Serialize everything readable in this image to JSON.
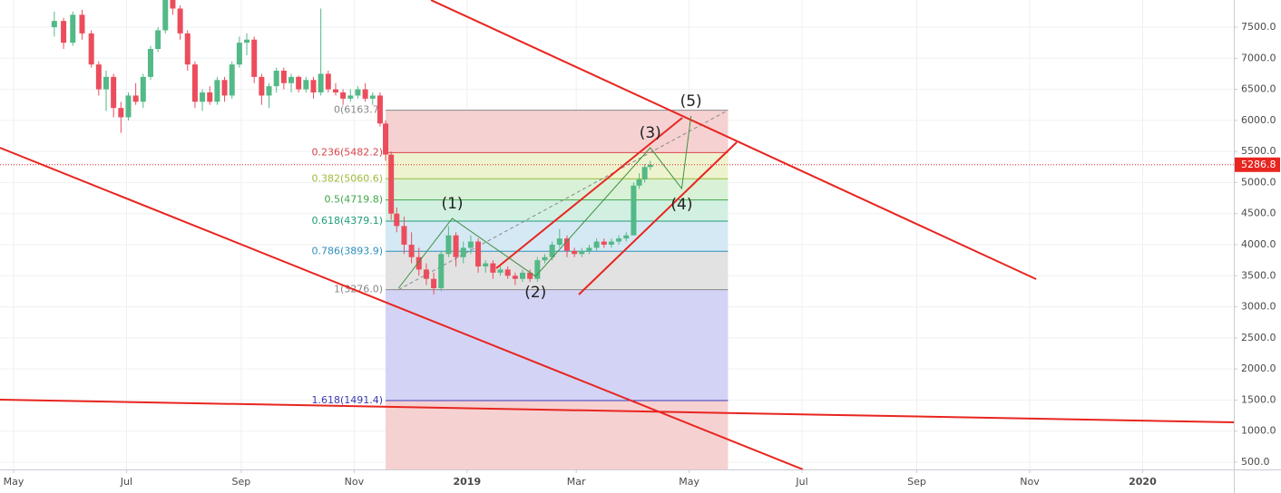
{
  "chart_data": {
    "type": "candlestick",
    "x": [
      22,
      27,
      32,
      37,
      42,
      46,
      50,
      54,
      58,
      62,
      66,
      70,
      74,
      78,
      82,
      86,
      90,
      94,
      98,
      102,
      106,
      110,
      114,
      118,
      122,
      126,
      130,
      134,
      138,
      142,
      146,
      150,
      154,
      158,
      162,
      166,
      170,
      174,
      178,
      182,
      186,
      190,
      194,
      198,
      201,
      204,
      207,
      211,
      215,
      219,
      223,
      227,
      231,
      235,
      239,
      243,
      247,
      251,
      255,
      259,
      263,
      267,
      271,
      275,
      279,
      283,
      287,
      291,
      295,
      299,
      303,
      307,
      311,
      315,
      319,
      323,
      327,
      331,
      335,
      338,
      341,
      344
    ],
    "open": [
      7500,
      7600,
      7250,
      7700,
      7400,
      6900,
      6500,
      6700,
      6200,
      6050,
      6400,
      6300,
      6700,
      7150,
      7450,
      8000,
      7800,
      7400,
      6900,
      6300,
      6450,
      6300,
      6650,
      6400,
      6900,
      7250,
      7300,
      6700,
      6400,
      6550,
      6800,
      6600,
      6700,
      6500,
      6650,
      6450,
      6750,
      6500,
      6450,
      6350,
      6400,
      6500,
      6350,
      6400,
      5950,
      5450,
      4500,
      4300,
      4000,
      3800,
      3600,
      3450,
      3300,
      3850,
      4150,
      3800,
      3950,
      4050,
      3650,
      3700,
      3550,
      3600,
      3500,
      3450,
      3550,
      3450,
      3750,
      3800,
      4000,
      4100,
      3900,
      3850,
      3900,
      3950,
      4050,
      4000,
      4050,
      4100,
      4150,
      4950,
      5050,
      5250
    ],
    "high": [
      7750,
      7650,
      7750,
      7780,
      7450,
      6950,
      6800,
      6750,
      6300,
      6450,
      6600,
      6750,
      7200,
      7500,
      8150,
      8250,
      7850,
      7450,
      6950,
      6500,
      6550,
      6700,
      6700,
      6950,
      7350,
      7400,
      7350,
      6750,
      6600,
      6850,
      6850,
      6750,
      6720,
      6700,
      6700,
      7800,
      6800,
      6600,
      6500,
      6500,
      6550,
      6600,
      6450,
      6450,
      6000,
      5500,
      4600,
      4450,
      4200,
      3950,
      3700,
      3550,
      3900,
      4300,
      4200,
      4050,
      4150,
      4100,
      3750,
      3750,
      3650,
      3650,
      3550,
      3600,
      3600,
      3800,
      3850,
      4050,
      4250,
      4150,
      3950,
      3950,
      4000,
      4100,
      4100,
      4100,
      4150,
      4200,
      5000,
      5150,
      5300,
      5350
    ],
    "low": [
      7350,
      7150,
      7200,
      7300,
      6850,
      6400,
      6150,
      6050,
      5800,
      6000,
      6250,
      6200,
      6650,
      7100,
      7400,
      7700,
      7300,
      6800,
      6200,
      6150,
      6250,
      6250,
      6300,
      6350,
      6850,
      7050,
      6600,
      6250,
      6200,
      6450,
      6500,
      6450,
      6450,
      6450,
      6350,
      6400,
      6450,
      6400,
      6250,
      6300,
      6350,
      6300,
      6250,
      5900,
      5350,
      4400,
      4200,
      3850,
      3700,
      3500,
      3350,
      3200,
      3250,
      3800,
      3650,
      3700,
      3850,
      3550,
      3550,
      3450,
      3500,
      3450,
      3350,
      3400,
      3400,
      3400,
      3700,
      3750,
      3950,
      3800,
      3800,
      3800,
      3850,
      3900,
      3950,
      3950,
      4000,
      4050,
      4150,
      4900,
      5000,
      5200
    ],
    "close": [
      7600,
      7250,
      7700,
      7400,
      6900,
      6500,
      6700,
      6200,
      6050,
      6400,
      6300,
      6700,
      7150,
      7450,
      8000,
      7800,
      7400,
      6900,
      6300,
      6450,
      6300,
      6650,
      6400,
      6900,
      7250,
      7300,
      6700,
      6400,
      6550,
      6800,
      6600,
      6700,
      6500,
      6650,
      6450,
      6750,
      6500,
      6450,
      6350,
      6400,
      6500,
      6350,
      6400,
      5950,
      5450,
      4500,
      4300,
      4000,
      3800,
      3600,
      3450,
      3300,
      3850,
      4150,
      3800,
      3950,
      4050,
      3650,
      3700,
      3550,
      3600,
      3500,
      3450,
      3550,
      3450,
      3750,
      3800,
      4000,
      4100,
      3900,
      3850,
      3900,
      3950,
      4050,
      4000,
      4050,
      4100,
      4150,
      4950,
      5050,
      5250,
      5286.8
    ],
    "up_color": "#53b987",
    "down_color": "#eb4d5c",
    "xlim": [
      -7.35,
      659.3
    ],
    "xticks": [
      {
        "value": 0,
        "label": "May"
      },
      {
        "value": 61,
        "label": "Jul"
      },
      {
        "value": 123,
        "label": "Sep"
      },
      {
        "value": 184,
        "label": "Nov"
      },
      {
        "value": 245,
        "label": "2019"
      },
      {
        "value": 304,
        "label": "Mar"
      },
      {
        "value": 365,
        "label": "May"
      },
      {
        "value": 426,
        "label": "Jul"
      },
      {
        "value": 488,
        "label": "Sep"
      },
      {
        "value": 549,
        "label": "Nov"
      },
      {
        "value": 610,
        "label": "2020"
      }
    ],
    "ylim": [
      383.3,
      7937.5
    ],
    "yticks": [
      {
        "value": 500,
        "label": "500.0"
      },
      {
        "value": 1000,
        "label": "1000.0"
      },
      {
        "value": 1500,
        "label": "1500.0"
      },
      {
        "value": 2000,
        "label": "2000.0"
      },
      {
        "value": 2500,
        "label": "2500.0"
      },
      {
        "value": 3000,
        "label": "3000.0"
      },
      {
        "value": 3500,
        "label": "3500.0"
      },
      {
        "value": 4000,
        "label": "4000.0"
      },
      {
        "value": 4500,
        "label": "4500.0"
      },
      {
        "value": 5000,
        "label": "5000.0"
      },
      {
        "value": 5500,
        "label": "5500.0"
      },
      {
        "value": 6000,
        "label": "6000.0"
      },
      {
        "value": 6500,
        "label": "6500.0"
      },
      {
        "value": 7000,
        "label": "7000.0"
      },
      {
        "value": 7500,
        "label": "7500.0"
      }
    ],
    "grid": true,
    "last_price": 5286.8,
    "last_price_color": "#e8251f",
    "fibonacci": {
      "x": [
        201,
        386
      ],
      "trend_x": [
        208,
        386
      ],
      "levels": [
        {
          "value": 6163.7,
          "label": "0(6163.7)",
          "color": "#888888",
          "fill": "#f6d1d2"
        },
        {
          "value": 5482.2,
          "label": "0.236(5482.2)",
          "color": "#d9454a",
          "fill": "#eef3cf"
        },
        {
          "value": 5060.6,
          "label": "0.382(5060.6)",
          "color": "#9cbb3a",
          "fill": "#d9f1d6"
        },
        {
          "value": 4719.8,
          "label": "0.5(4719.8)",
          "color": "#3fa64b",
          "fill": "#d2f0e2"
        },
        {
          "value": 4379.1,
          "label": "0.618(4379.1)",
          "color": "#1f9d78",
          "fill": "#d5e9f4"
        },
        {
          "value": 3893.9,
          "label": "0.786(3893.9)",
          "color": "#2f8fbf",
          "fill": "#e2e2e2"
        },
        {
          "value": 3276.0,
          "label": "1(3276.0)",
          "color": "#888888",
          "fill": "#d3d3f6"
        },
        {
          "value": 1491.4,
          "label": "1.618(1491.4)",
          "color": "#3a3ab5",
          "fill": "#f6d1d2"
        }
      ]
    },
    "lines": {
      "color": "#e8251f",
      "items": [
        {
          "x": [
            225.5,
            552.5
          ],
          "y": [
            7937,
            3446
          ]
        },
        {
          "x": [
            -7.4,
            426.5
          ],
          "y": [
            5560,
            383
          ]
        },
        {
          "x": [
            -7.4,
            659.3
          ],
          "y": [
            1506,
            1142
          ]
        },
        {
          "x": [
            260.8,
            361.3
          ],
          "y": [
            3621,
            6042
          ]
        },
        {
          "x": [
            305.4,
            390.7
          ],
          "y": [
            3198,
            5648
          ]
        }
      ]
    },
    "waves": {
      "color": "#3f8f3f",
      "x": [
        208,
        237,
        282,
        344,
        361,
        366
      ],
      "y": [
        3300,
        4423,
        3490,
        5560,
        4904,
        6071
      ],
      "labels": [
        null,
        "(1)",
        "(2)",
        "(3)",
        "(4)",
        "(5)"
      ]
    }
  }
}
